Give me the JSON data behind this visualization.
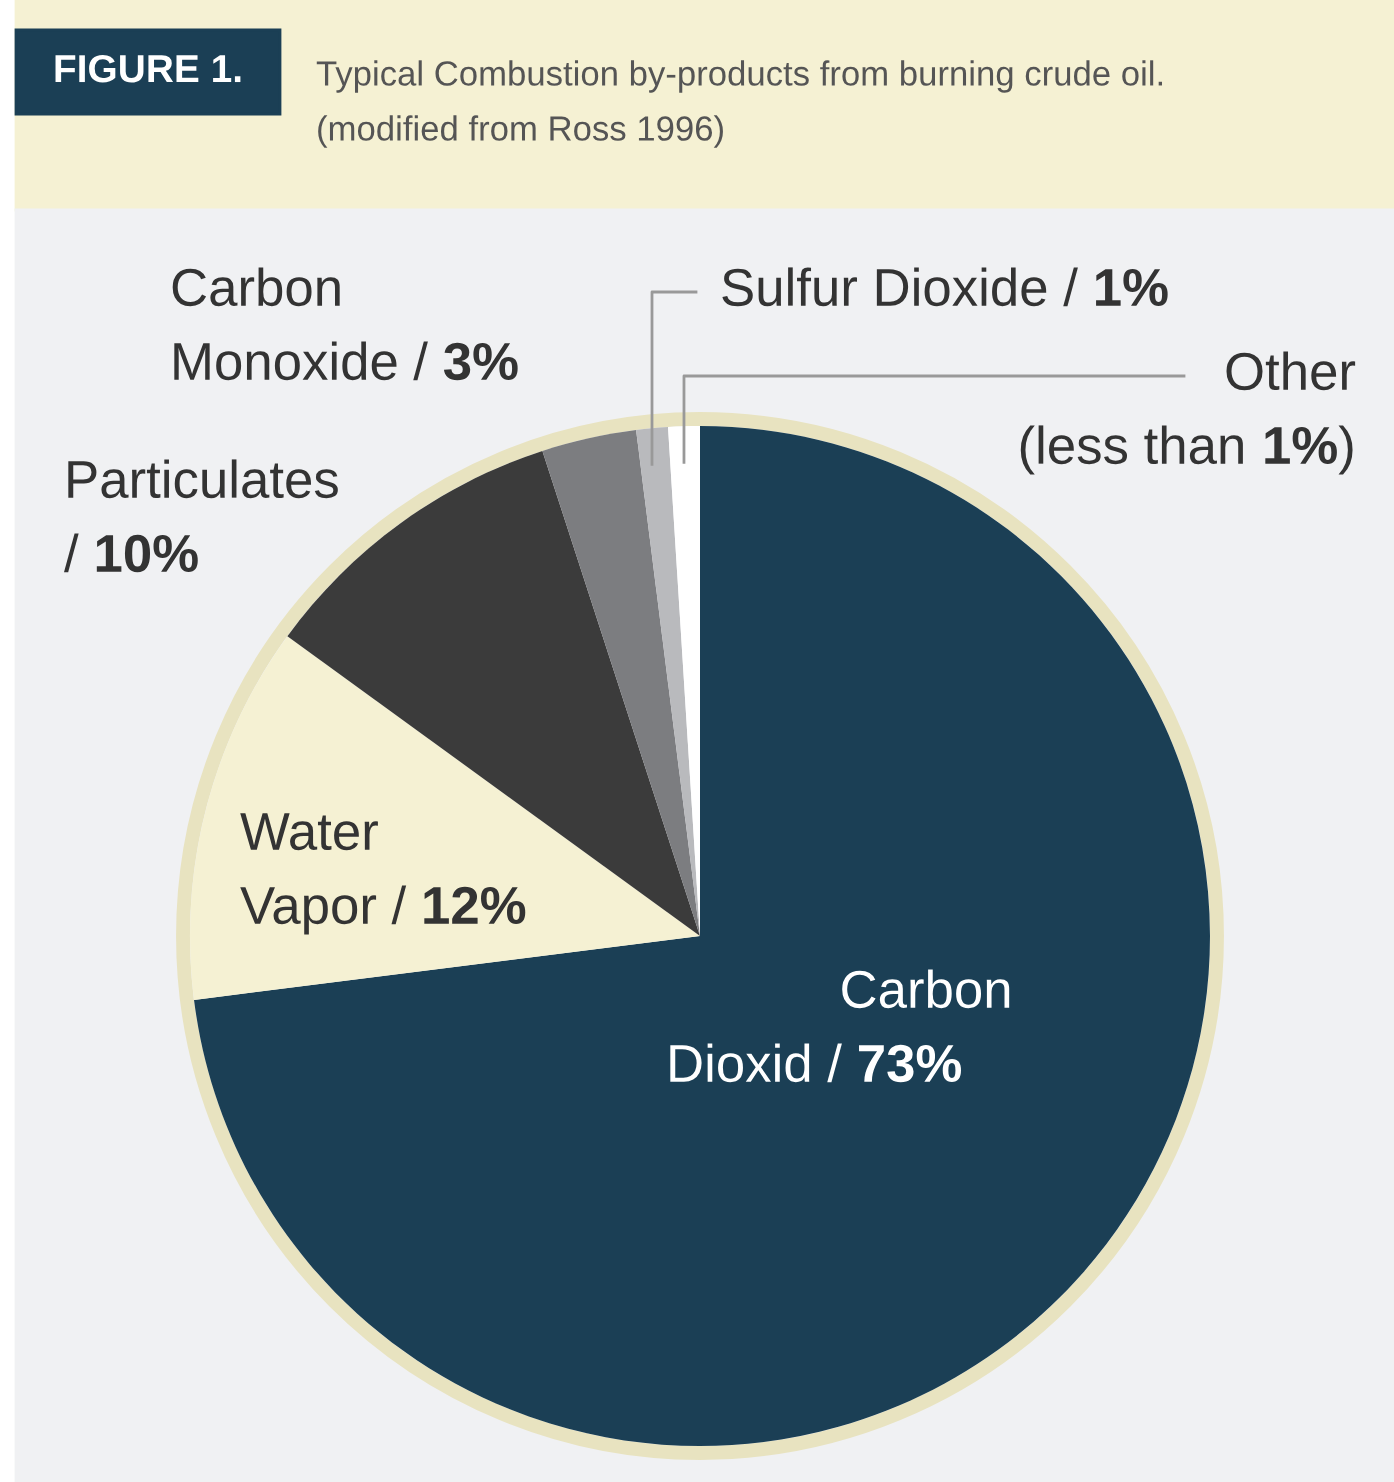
{
  "chart_data": {
    "type": "pie",
    "title": "FIGURE 1.",
    "subtitle": "Typical Combustion by-products from burning crude oil.\n(modified from Ross 1996)",
    "categories": [
      "Carbon\nDioxid",
      "Water\nVapor",
      "Particulates",
      "Carbon\nMonoxide",
      "Sulfur Dioxide",
      "Other"
    ],
    "values": [
      73,
      12,
      10,
      3,
      1,
      1
    ],
    "value_labels": [
      "/ 73%",
      "/ 12%",
      "/ 10%",
      "/ 3%",
      "/ 1%",
      "(less than 1%)"
    ],
    "colors": [
      "#1b3f55",
      "#f5f1d3",
      "#3b3b3b",
      "#7c7d80",
      "#b9babd",
      "#ffffff"
    ]
  }
}
